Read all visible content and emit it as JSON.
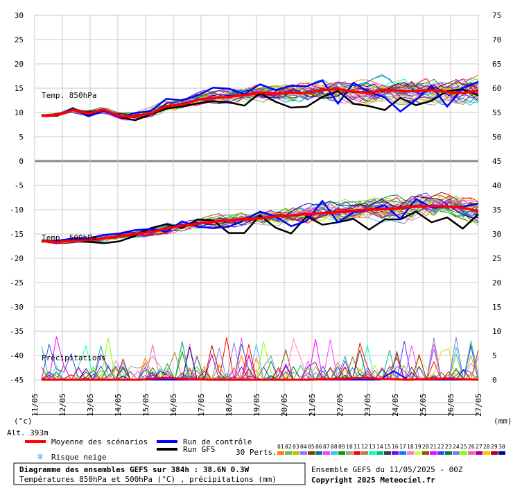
{
  "chart_data": {
    "type": "line",
    "left_axis_ticks": [
      "30",
      "25",
      "20",
      "15",
      "10",
      "5",
      "0",
      "-5",
      "-10",
      "-15",
      "-20",
      "-25",
      "-30",
      "-35",
      "-40",
      "-45"
    ],
    "right_axis_ticks": [
      "75",
      "70",
      "65",
      "60",
      "55",
      "50",
      "45",
      "40",
      "35",
      "30",
      "25",
      "20",
      "15",
      "10",
      "5",
      "0"
    ],
    "x_labels": [
      "11/05",
      "12/05",
      "13/05",
      "14/05",
      "15/05",
      "16/05",
      "17/05",
      "18/05",
      "19/05",
      "20/05",
      "21/05",
      "22/05",
      "23/05",
      "24/05",
      "25/05",
      "26/05",
      "27/05"
    ],
    "panel_labels": {
      "t850": "Temp. 850hPa",
      "t500": "Temp. 500hPa",
      "precip": "Précipitations"
    },
    "unit_left": "(°c)",
    "unit_right": "(mm)",
    "altitude": "Alt. 393m",
    "legend": {
      "mean": "Moyenne des scénarios",
      "control": "Run de contrôle",
      "gfs": "Run GFS",
      "snow": "Risque neige",
      "perts_label": "30 Perts."
    },
    "pert_numbers": [
      "01",
      "02",
      "03",
      "04",
      "05",
      "06",
      "07",
      "08",
      "09",
      "10",
      "11",
      "12",
      "13",
      "14",
      "15",
      "16",
      "17",
      "18",
      "19",
      "20",
      "21",
      "22",
      "23",
      "24",
      "25",
      "26",
      "27",
      "28",
      "29",
      "30"
    ],
    "pert_colors": [
      "#ff8000",
      "#60c060",
      "#c0c000",
      "#8080ff",
      "#804000",
      "#008080",
      "#ff40ff",
      "#40c0ff",
      "#00a000",
      "#a0a0a0",
      "#ff0000",
      "#c08040",
      "#00ffc0",
      "#00c080",
      "#404040",
      "#8000ff",
      "#0080ff",
      "#ff80c0",
      "#c0ff40",
      "#806000",
      "#ff00ff",
      "#4040ff",
      "#008040",
      "#8080c0",
      "#80ff00",
      "#ff60a0",
      "#a000a0",
      "#ffc000",
      "#c00000",
      "#0000a0"
    ],
    "colors": {
      "mean": "#ff0000",
      "control": "#0000ff",
      "gfs": "#000000",
      "snow": "#4aa8e8"
    },
    "mean_t850": [
      9.3,
      9.5,
      10.5,
      9.8,
      10.6,
      9.2,
      9.2,
      9.8,
      11.3,
      11.6,
      12.6,
      13.0,
      13.2,
      13.6,
      14.1,
      13.9,
      14.1,
      14.0,
      14.6,
      14.8,
      14.3,
      14.0,
      14.7,
      14.4,
      14.4,
      14.6,
      14.2,
      14.0,
      14.5
    ],
    "control_t850": [
      9.5,
      9.4,
      10.8,
      9.2,
      10.3,
      9.0,
      9.9,
      10.3,
      12.8,
      12.5,
      13.5,
      15.1,
      14.9,
      13.8,
      15.8,
      14.6,
      15.5,
      15.4,
      16.6,
      11.8,
      16.1,
      14.2,
      13.1,
      10.2,
      12.6,
      15.5,
      11.2,
      15.1,
      16.3
    ],
    "gfs_t850": [
      9.3,
      9.3,
      10.9,
      9.4,
      10.5,
      9.0,
      8.4,
      9.6,
      10.8,
      11.2,
      11.9,
      12.3,
      12.1,
      11.4,
      14.0,
      12.2,
      11.0,
      11.2,
      13.2,
      14.4,
      11.8,
      11.3,
      10.5,
      13.0,
      11.5,
      12.4,
      14.4,
      14.8,
      13.5
    ],
    "mean_t500": [
      -18.4,
      -18.7,
      -18.3,
      -18.2,
      -17.9,
      -17.4,
      -17.0,
      -16.6,
      -15.9,
      -15.3,
      -14.9,
      -14.5,
      -14.2,
      -14.0,
      -13.8,
      -13.4,
      -13.2,
      -12.9,
      -12.7,
      -12.5,
      -12.2,
      -12.0,
      -11.9,
      -11.7,
      -11.4,
      -11.2,
      -11.4,
      -11.6,
      -12.3
    ],
    "control_t500": [
      -18.6,
      -18.4,
      -17.9,
      -17.9,
      -17.2,
      -16.9,
      -16.2,
      -16.0,
      -16.5,
      -14.4,
      -15.5,
      -15.8,
      -15.5,
      -14.2,
      -12.4,
      -13.4,
      -15.4,
      -14.3,
      -10.2,
      -14.6,
      -12.5,
      -12.1,
      -11.1,
      -13.9,
      -9.8,
      -11.5,
      -11.4,
      -11.4,
      -10.7
    ],
    "gfs_t500": [
      -18.3,
      -18.5,
      -17.9,
      -18.6,
      -18.9,
      -18.5,
      -17.4,
      -15.8,
      -15.0,
      -15.8,
      -14.0,
      -14.2,
      -16.8,
      -16.8,
      -13.2,
      -15.7,
      -16.9,
      -13.4,
      -15.1,
      -14.6,
      -13.9,
      -16.1,
      -14.0,
      -14.0,
      -12.4,
      -14.6,
      -13.6,
      -15.9,
      -12.9
    ],
    "precip_mean": [
      0,
      0,
      0,
      0,
      0,
      0,
      0,
      0,
      0.3,
      0.4,
      0.2,
      0.1,
      0,
      0,
      0,
      0,
      0,
      0,
      0,
      0,
      0.1,
      0.2,
      0.3,
      0.4,
      0.2,
      0.1,
      0,
      0.1,
      0.2,
      0.3,
      0.1,
      0
    ],
    "precip_control": [
      0,
      0,
      0,
      0,
      0,
      0,
      0,
      0,
      0,
      0,
      0,
      0,
      0,
      0,
      0,
      0,
      0,
      0,
      0,
      0,
      0,
      0,
      0,
      0,
      0,
      1.8,
      0,
      0,
      0,
      0,
      0,
      0
    ]
  }
}
